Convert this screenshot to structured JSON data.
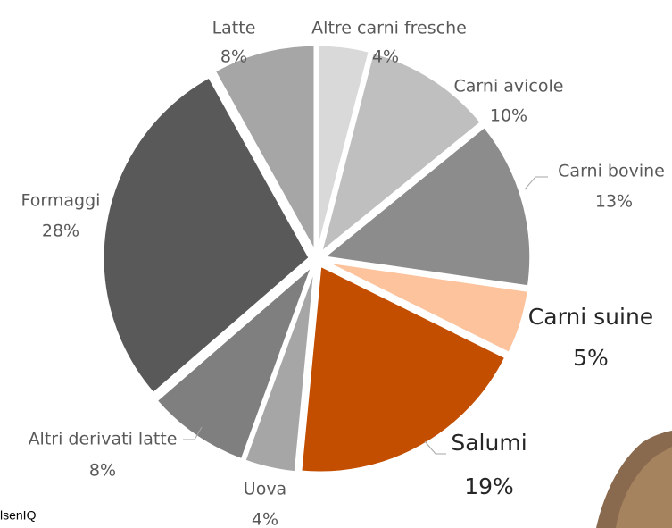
{
  "chart_data": {
    "type": "pie",
    "categories": [
      "Altre carni fresche",
      "Carni avicole",
      "Carni bovine",
      "Carni suine",
      "Salumi",
      "Uova",
      "Altri derivati latte",
      "Formaggi",
      "Latte"
    ],
    "values": [
      4,
      10,
      13,
      5,
      19,
      4,
      8,
      28,
      8
    ],
    "value_labels": [
      "4%",
      "10%",
      "13%",
      "5%",
      "19%",
      "4%",
      "8%",
      "28%",
      "8%"
    ],
    "colors": [
      "#d9d9d9",
      "#bfbfbf",
      "#8c8c8c",
      "#fcc39c",
      "#c34e00",
      "#a6a6a6",
      "#7f7f7f",
      "#595959",
      "#a6a6a6"
    ],
    "source": "lsenIQ"
  }
}
